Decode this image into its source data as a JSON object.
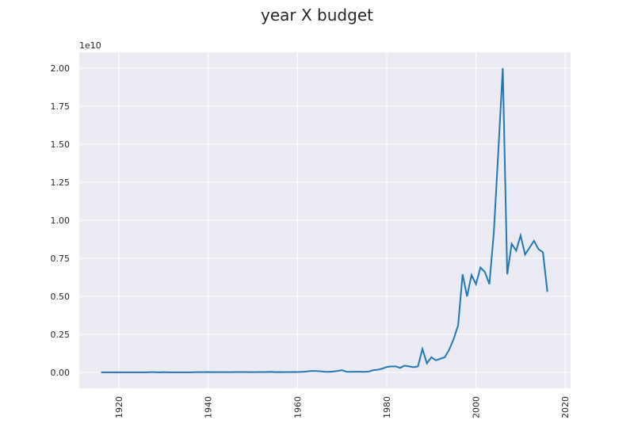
{
  "chart_data": {
    "type": "line",
    "title": "year X budget",
    "y_offset_label": "1e10",
    "x": [
      1916,
      1917,
      1918,
      1919,
      1920,
      1921,
      1922,
      1923,
      1924,
      1925,
      1926,
      1927,
      1928,
      1929,
      1930,
      1931,
      1932,
      1933,
      1934,
      1935,
      1936,
      1937,
      1938,
      1939,
      1940,
      1941,
      1942,
      1943,
      1944,
      1945,
      1946,
      1947,
      1948,
      1949,
      1950,
      1951,
      1952,
      1953,
      1954,
      1955,
      1956,
      1957,
      1958,
      1959,
      1960,
      1961,
      1962,
      1963,
      1964,
      1965,
      1966,
      1967,
      1968,
      1969,
      1970,
      1971,
      1972,
      1973,
      1974,
      1975,
      1976,
      1977,
      1978,
      1979,
      1980,
      1981,
      1982,
      1983,
      1984,
      1985,
      1986,
      1987,
      1988,
      1989,
      1990,
      1991,
      1992,
      1993,
      1994,
      1995,
      1996,
      1997,
      1998,
      1999,
      2000,
      2001,
      2002,
      2003,
      2004,
      2005,
      2006,
      2007,
      2008,
      2009,
      2010,
      2011,
      2012,
      2013,
      2014,
      2015,
      2016
    ],
    "series": [
      {
        "name": "budget",
        "color": "#1f77b4",
        "values": [
          0.001,
          0.001,
          0.001,
          0.001,
          0.001,
          0.001,
          0.001,
          0.001,
          0.001,
          0.001,
          0.001,
          0.002,
          0.002,
          0.001,
          0.002,
          0.001,
          0.001,
          0.001,
          0.001,
          0.001,
          0.001,
          0.002,
          0.002,
          0.002,
          0.003,
          0.002,
          0.002,
          0.002,
          0.002,
          0.002,
          0.003,
          0.003,
          0.003,
          0.002,
          0.002,
          0.003,
          0.003,
          0.003,
          0.004,
          0.002,
          0.003,
          0.002,
          0.003,
          0.003,
          0.003,
          0.004,
          0.006,
          0.01,
          0.009,
          0.008,
          0.005,
          0.004,
          0.006,
          0.01,
          0.015,
          0.005,
          0.004,
          0.005,
          0.005,
          0.004,
          0.006,
          0.015,
          0.018,
          0.025,
          0.036,
          0.04,
          0.04,
          0.03,
          0.045,
          0.04,
          0.035,
          0.04,
          0.155,
          0.06,
          0.1,
          0.08,
          0.09,
          0.1,
          0.15,
          0.22,
          0.31,
          0.645,
          0.5,
          0.64,
          0.58,
          0.69,
          0.66,
          0.58,
          0.92,
          1.45,
          2.0,
          0.645,
          0.845,
          0.8,
          0.9,
          0.775,
          0.82,
          0.865,
          0.81,
          0.79,
          0.53
        ]
      }
    ],
    "xlim": [
      1911.1,
      2021.2
    ],
    "xticks": [
      1920,
      1940,
      1960,
      1980,
      2000,
      2020
    ],
    "ylim": [
      -0.104,
      2.104
    ],
    "yticks": [
      {
        "value": 0,
        "label": "0.00"
      },
      {
        "value": 0.25,
        "label": "0.25"
      },
      {
        "value": 0.5,
        "label": "0.50"
      },
      {
        "value": 0.75,
        "label": "0.75"
      },
      {
        "value": 1,
        "label": "1.00"
      },
      {
        "value": 1.25,
        "label": "1.25"
      },
      {
        "value": 1.5,
        "label": "1.50"
      },
      {
        "value": 1.75,
        "label": "1.75"
      },
      {
        "value": 2,
        "label": "2.00"
      }
    ],
    "grid": true
  }
}
